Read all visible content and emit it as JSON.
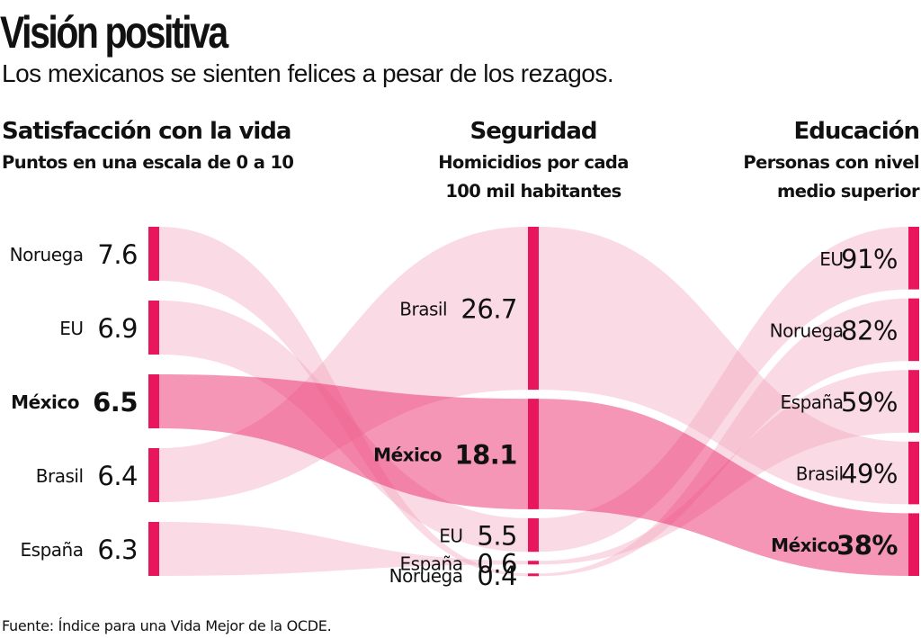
{
  "title": "Visión positiva",
  "subtitle": "Los mexicanos se sienten felices a pesar de los rezagos.",
  "source": "Fuente: Índice para una Vida Mejor de la OCDE.",
  "colors": {
    "bar": "#e8175d",
    "flow": "#f3a6be",
    "highlight_flow": "#e8175d"
  },
  "chart_data": {
    "type": "parallel-ranking",
    "highlight": "México",
    "columns": [
      {
        "key": "satisfaccion",
        "title": "Satisfacción con la vida",
        "subtitle": [
          "Puntos en una escala de 0 a 10"
        ],
        "values": [
          {
            "name": "Noruega",
            "value": 7.6,
            "label": "7.6"
          },
          {
            "name": "EU",
            "value": 6.9,
            "label": "6.9"
          },
          {
            "name": "México",
            "value": 6.5,
            "label": "6.5"
          },
          {
            "name": "Brasil",
            "value": 6.4,
            "label": "6.4"
          },
          {
            "name": "España",
            "value": 6.3,
            "label": "6.3"
          }
        ]
      },
      {
        "key": "seguridad",
        "title": "Seguridad",
        "subtitle": [
          "Homicidios por cada",
          "100 mil habitantes"
        ],
        "values": [
          {
            "name": "Brasil",
            "value": 26.7,
            "label": "26.7"
          },
          {
            "name": "México",
            "value": 18.1,
            "label": "18.1"
          },
          {
            "name": "EU",
            "value": 5.5,
            "label": "5.5"
          },
          {
            "name": "España",
            "value": 0.6,
            "label": "0.6"
          },
          {
            "name": "Noruega",
            "value": 0.4,
            "label": "0.4"
          }
        ]
      },
      {
        "key": "educacion",
        "title": "Educación",
        "subtitle": [
          "Personas con nivel",
          "medio superior"
        ],
        "values": [
          {
            "name": "EU",
            "value": 91,
            "label": "91%"
          },
          {
            "name": "Noruega",
            "value": 82,
            "label": "82%"
          },
          {
            "name": "España",
            "value": 59,
            "label": "59%"
          },
          {
            "name": "Brasil",
            "value": 49,
            "label": "49%"
          },
          {
            "name": "México",
            "value": 38,
            "label": "38%"
          }
        ]
      }
    ]
  }
}
